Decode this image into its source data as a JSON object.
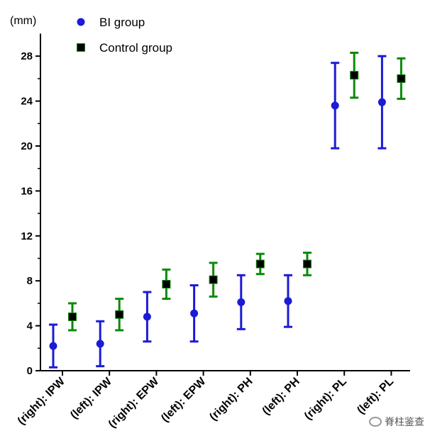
{
  "chart_data": {
    "type": "scatter",
    "ylabel": "(mm)",
    "ylim": [
      0,
      30
    ],
    "yticks": [
      0,
      4,
      8,
      12,
      16,
      20,
      24,
      28
    ],
    "categories": [
      "(right): IPW",
      "(left): IPW",
      "(right): EPW",
      "(left): EPW",
      "(right): PH",
      "(left): PH",
      "(right): PL",
      "(left): PL"
    ],
    "legend_position": "top-left",
    "series": [
      {
        "name": "BI group",
        "color": "#1b1bd6",
        "marker": "circle",
        "values": [
          2.2,
          2.4,
          4.8,
          5.1,
          6.1,
          6.2,
          23.6,
          23.9
        ],
        "err_low": [
          0.3,
          0.4,
          2.6,
          2.6,
          3.7,
          3.9,
          19.8,
          19.8
        ],
        "err_high": [
          4.1,
          4.4,
          7.0,
          7.6,
          8.5,
          8.5,
          27.4,
          28.0
        ]
      },
      {
        "name": "Control group",
        "color": "#000000",
        "error_color": "#0b8a0b",
        "marker": "square",
        "values": [
          4.8,
          5.0,
          7.7,
          8.1,
          9.5,
          9.5,
          26.3,
          26.0
        ],
        "err_low": [
          3.6,
          3.6,
          6.4,
          6.6,
          8.6,
          8.5,
          24.3,
          24.2
        ],
        "err_high": [
          6.0,
          6.4,
          9.0,
          9.6,
          10.4,
          10.5,
          28.3,
          27.8
        ]
      }
    ]
  },
  "watermark": {
    "text": "脊柱鉴查",
    "icon": "wechat-icon"
  }
}
